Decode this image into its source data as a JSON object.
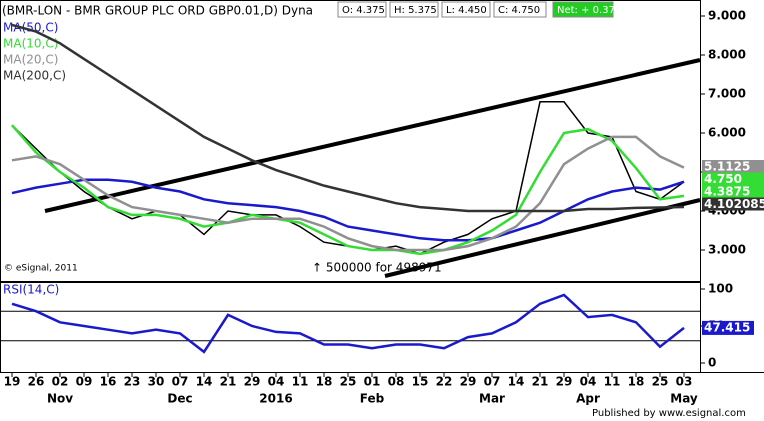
{
  "chart_data": {
    "type": "line",
    "title": "(BMR-LON - BMR GROUP PLC ORD GBP0.01,D) Dyna",
    "ohlc": [
      "O: 4.375",
      "H: 5.375",
      "L: 4.450",
      "C: 4.750",
      "Net: + 0.375"
    ],
    "copyright": "© eSignal, 2011",
    "annotation": "↑ 500000 for 498971",
    "footer": "Published by www.esignal.com",
    "categories": [
      "19",
      "26",
      "02",
      "09",
      "16",
      "23",
      "30",
      "07",
      "14",
      "21",
      "29",
      "04",
      "11",
      "18",
      "25",
      "01",
      "08",
      "15",
      "22",
      "29",
      "07",
      "14",
      "21",
      "29",
      "04",
      "11",
      "18",
      "25",
      "03"
    ],
    "months": [
      {
        "label": "Nov",
        "at": 2
      },
      {
        "label": "Dec",
        "at": 7
      },
      {
        "label": "2016",
        "at": 11
      },
      {
        "label": "Feb",
        "at": 15
      },
      {
        "label": "Mar",
        "at": 20
      },
      {
        "label": "Apr",
        "at": 24
      },
      {
        "label": "May",
        "at": 28
      }
    ],
    "series": [
      {
        "name": "Price",
        "color": "#000000",
        "values": [
          6.2,
          5.6,
          5.0,
          4.5,
          4.1,
          3.8,
          4.0,
          3.9,
          3.4,
          4.0,
          3.9,
          3.9,
          3.6,
          3.2,
          3.1,
          3.0,
          3.1,
          2.9,
          3.2,
          3.4,
          3.8,
          4.0,
          6.8,
          6.8,
          6.0,
          5.9,
          4.5,
          4.3,
          4.75
        ]
      },
      {
        "name": "MA(50,C)",
        "color": "#1a1acc",
        "values": [
          4.46,
          4.6,
          4.7,
          4.8,
          4.8,
          4.75,
          4.6,
          4.5,
          4.3,
          4.2,
          4.15,
          4.1,
          4.0,
          3.85,
          3.6,
          3.5,
          3.4,
          3.3,
          3.25,
          3.25,
          3.3,
          3.5,
          3.7,
          4.0,
          4.3,
          4.5,
          4.6,
          4.55,
          4.75
        ]
      },
      {
        "name": "MA(10,C)",
        "color": "#33dd33",
        "values": [
          6.2,
          5.5,
          5.0,
          4.6,
          4.1,
          3.9,
          3.9,
          3.8,
          3.6,
          3.7,
          3.9,
          3.8,
          3.7,
          3.4,
          3.1,
          3.0,
          3.0,
          2.9,
          3.0,
          3.2,
          3.5,
          3.9,
          5.0,
          6.0,
          6.1,
          5.8,
          5.1,
          4.3,
          4.3875
        ]
      },
      {
        "name": "MA(20,C)",
        "color": "#909090",
        "values": [
          5.3,
          5.4,
          5.2,
          4.8,
          4.4,
          4.1,
          4.0,
          3.9,
          3.8,
          3.7,
          3.8,
          3.8,
          3.8,
          3.6,
          3.3,
          3.1,
          3.0,
          3.0,
          3.0,
          3.1,
          3.3,
          3.6,
          4.2,
          5.2,
          5.6,
          5.9,
          5.9,
          5.4,
          5.1125
        ]
      },
      {
        "name": "MA(200,C)",
        "color": "#333333",
        "values": [
          8.77,
          8.6,
          8.3,
          7.9,
          7.5,
          7.1,
          6.7,
          6.3,
          5.9,
          5.6,
          5.3,
          5.05,
          4.85,
          4.65,
          4.5,
          4.35,
          4.2,
          4.1,
          4.05,
          4.0,
          4.0,
          4.0,
          4.0,
          4.0,
          4.05,
          4.05,
          4.08,
          4.09,
          4.102085
        ]
      }
    ],
    "ylim": [
      2.5,
      9.4
    ],
    "yticks": [
      {
        "value": 3,
        "label": "3.000"
      },
      {
        "value": 4,
        "label": "4.000"
      },
      {
        "value": 5,
        "label": "5.000"
      },
      {
        "value": 6,
        "label": "6.000"
      },
      {
        "value": 7,
        "label": "7.000"
      },
      {
        "value": 8,
        "label": "8.000"
      },
      {
        "value": 9,
        "label": "9.000"
      }
    ],
    "last_labels": [
      {
        "value": 5.1125,
        "label": "5.1125",
        "color": "#909090"
      },
      {
        "value": 4.75,
        "label": "4.750",
        "color": "#33dd33"
      },
      {
        "value": 4.3875,
        "label": "4.3875",
        "color": "#33dd33"
      },
      {
        "value": 4.102085,
        "label": "4.102085",
        "color": "#333333"
      }
    ],
    "rsi": {
      "name": "RSI(14,C)",
      "color": "#1a1acc",
      "values": [
        80,
        70,
        55,
        50,
        45,
        40,
        45,
        40,
        15,
        65,
        50,
        42,
        40,
        25,
        25,
        20,
        25,
        25,
        20,
        35,
        40,
        55,
        80,
        92,
        62,
        65,
        55,
        22,
        47.415
      ],
      "last_label": "47.415",
      "ylim": [
        -5,
        110
      ],
      "yticks": [
        0,
        50,
        100
      ],
      "levels": [
        30,
        70
      ]
    }
  }
}
